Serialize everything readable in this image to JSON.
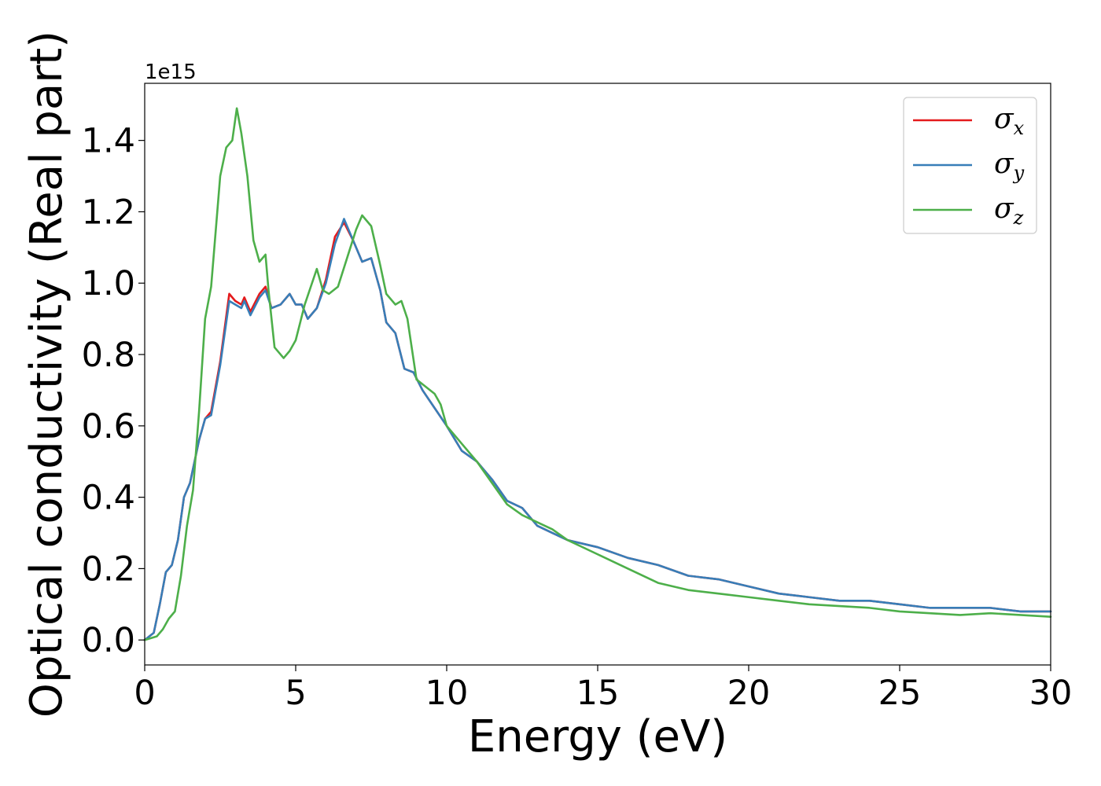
{
  "chart_data": {
    "type": "line",
    "xlabel": "Energy (eV)",
    "ylabel": "Optical conductivity (Real part)",
    "y_offset_label": "1e15",
    "xlim": [
      0,
      30
    ],
    "ylim": [
      -0.07,
      1.56
    ],
    "x_ticks": [
      0,
      5,
      10,
      15,
      20,
      25,
      30
    ],
    "x_tick_labels": [
      "0",
      "5",
      "10",
      "15",
      "20",
      "25",
      "30"
    ],
    "y_ticks": [
      0.0,
      0.2,
      0.4,
      0.6,
      0.8,
      1.0,
      1.2,
      1.4
    ],
    "y_tick_labels": [
      "0.0",
      "0.2",
      "0.4",
      "0.6",
      "0.8",
      "1.0",
      "1.2",
      "1.4"
    ],
    "grid": false,
    "legend_position": "top-right",
    "series": [
      {
        "name": "σx",
        "symbol": "σ",
        "subscript": "x",
        "color": "#e41a1c",
        "x": [
          0,
          0.3,
          0.5,
          0.7,
          0.9,
          1.1,
          1.3,
          1.5,
          1.8,
          2.0,
          2.2,
          2.5,
          2.8,
          3.0,
          3.2,
          3.3,
          3.5,
          3.8,
          4.0,
          4.2,
          4.5,
          4.8,
          5.0,
          5.2,
          5.4,
          5.7,
          6.0,
          6.3,
          6.6,
          6.9,
          7.2,
          7.5,
          7.8,
          8.0,
          8.3,
          8.6,
          8.9,
          9.2,
          9.6,
          10.0,
          10.5,
          11.0,
          11.5,
          12.0,
          12.5,
          13.0,
          13.5,
          14.0,
          15.0,
          16.0,
          17.0,
          18.0,
          19.0,
          20.0,
          21.0,
          22.0,
          23.0,
          24.0,
          25.0,
          26.0,
          27.0,
          28.0,
          29.0,
          30.0
        ],
        "values": [
          0.0,
          0.02,
          0.1,
          0.19,
          0.21,
          0.28,
          0.4,
          0.44,
          0.56,
          0.62,
          0.64,
          0.78,
          0.97,
          0.95,
          0.94,
          0.96,
          0.92,
          0.97,
          0.99,
          0.93,
          0.94,
          0.97,
          0.94,
          0.94,
          0.9,
          0.93,
          1.01,
          1.13,
          1.17,
          1.12,
          1.06,
          1.07,
          0.98,
          0.89,
          0.86,
          0.76,
          0.75,
          0.7,
          0.65,
          0.6,
          0.53,
          0.5,
          0.45,
          0.39,
          0.37,
          0.32,
          0.3,
          0.28,
          0.26,
          0.23,
          0.21,
          0.18,
          0.17,
          0.15,
          0.13,
          0.12,
          0.11,
          0.11,
          0.1,
          0.09,
          0.09,
          0.09,
          0.08,
          0.08
        ]
      },
      {
        "name": "σy",
        "symbol": "σ",
        "subscript": "y",
        "color": "#377eb8",
        "x": [
          0,
          0.3,
          0.5,
          0.7,
          0.9,
          1.1,
          1.3,
          1.5,
          1.8,
          2.0,
          2.2,
          2.5,
          2.8,
          3.0,
          3.2,
          3.3,
          3.5,
          3.8,
          4.0,
          4.2,
          4.5,
          4.8,
          5.0,
          5.2,
          5.4,
          5.7,
          6.0,
          6.3,
          6.6,
          6.9,
          7.2,
          7.5,
          7.8,
          8.0,
          8.3,
          8.6,
          8.9,
          9.2,
          9.6,
          10.0,
          10.5,
          11.0,
          11.5,
          12.0,
          12.5,
          13.0,
          13.5,
          14.0,
          15.0,
          16.0,
          17.0,
          18.0,
          19.0,
          20.0,
          21.0,
          22.0,
          23.0,
          24.0,
          25.0,
          26.0,
          27.0,
          28.0,
          29.0,
          30.0
        ],
        "values": [
          0.0,
          0.02,
          0.1,
          0.19,
          0.21,
          0.28,
          0.4,
          0.44,
          0.56,
          0.62,
          0.63,
          0.77,
          0.95,
          0.94,
          0.93,
          0.95,
          0.91,
          0.96,
          0.98,
          0.93,
          0.94,
          0.97,
          0.94,
          0.94,
          0.9,
          0.93,
          1.0,
          1.11,
          1.18,
          1.12,
          1.06,
          1.07,
          0.98,
          0.89,
          0.86,
          0.76,
          0.75,
          0.7,
          0.65,
          0.6,
          0.53,
          0.5,
          0.45,
          0.39,
          0.37,
          0.32,
          0.3,
          0.28,
          0.26,
          0.23,
          0.21,
          0.18,
          0.17,
          0.15,
          0.13,
          0.12,
          0.11,
          0.11,
          0.1,
          0.09,
          0.09,
          0.09,
          0.08,
          0.08
        ]
      },
      {
        "name": "σz",
        "symbol": "σ",
        "subscript": "z",
        "color": "#4daf4a",
        "x": [
          0,
          0.4,
          0.6,
          0.8,
          1.0,
          1.2,
          1.4,
          1.6,
          1.8,
          2.0,
          2.2,
          2.5,
          2.7,
          2.9,
          3.05,
          3.2,
          3.4,
          3.6,
          3.8,
          4.0,
          4.1,
          4.3,
          4.6,
          4.8,
          5.0,
          5.3,
          5.5,
          5.7,
          5.9,
          6.1,
          6.4,
          6.7,
          7.0,
          7.2,
          7.5,
          7.8,
          8.0,
          8.3,
          8.5,
          8.7,
          9.0,
          9.3,
          9.6,
          9.8,
          10.0,
          10.5,
          11.0,
          11.5,
          12.0,
          12.5,
          13.0,
          13.5,
          14.0,
          15.0,
          16.0,
          17.0,
          18.0,
          19.0,
          20.0,
          21.0,
          22.0,
          23.0,
          24.0,
          25.0,
          26.0,
          27.0,
          28.0,
          29.0,
          30.0
        ],
        "values": [
          0.0,
          0.01,
          0.03,
          0.06,
          0.08,
          0.18,
          0.32,
          0.42,
          0.64,
          0.9,
          0.99,
          1.3,
          1.38,
          1.4,
          1.49,
          1.42,
          1.3,
          1.12,
          1.06,
          1.08,
          0.98,
          0.82,
          0.79,
          0.81,
          0.84,
          0.94,
          0.99,
          1.04,
          0.98,
          0.97,
          0.99,
          1.07,
          1.15,
          1.19,
          1.16,
          1.05,
          0.97,
          0.94,
          0.95,
          0.9,
          0.73,
          0.71,
          0.69,
          0.66,
          0.6,
          0.55,
          0.5,
          0.44,
          0.38,
          0.35,
          0.33,
          0.31,
          0.28,
          0.24,
          0.2,
          0.16,
          0.14,
          0.13,
          0.12,
          0.11,
          0.1,
          0.095,
          0.09,
          0.08,
          0.075,
          0.07,
          0.075,
          0.07,
          0.065
        ]
      }
    ]
  }
}
